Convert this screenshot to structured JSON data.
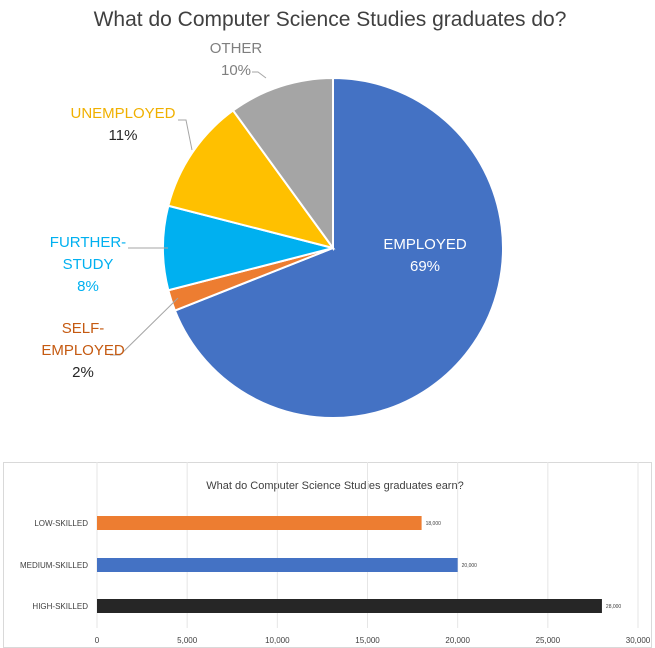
{
  "chart_data": [
    {
      "type": "pie",
      "title": "What do Computer Science Studies graduates do?",
      "slices": [
        {
          "label": "EMPLOYED",
          "label_lines": [
            "EMPLOYED"
          ],
          "value": 69,
          "value_text": "69%",
          "color": "#4472C4",
          "label_color": "#FFFFFF",
          "value_color": "#FFFFFF"
        },
        {
          "label": "SELF-EMPLOYED",
          "label_lines": [
            "SELF-",
            "EMPLOYED"
          ],
          "value": 2,
          "value_text": "2%",
          "color": "#ED7D31",
          "label_color": "#C55A11",
          "value_color": "#262626"
        },
        {
          "label": "FURTHER-STUDY",
          "label_lines": [
            "FURTHER-",
            "STUDY"
          ],
          "value": 8,
          "value_text": "8%",
          "color": "#00B0F0",
          "label_color": "#00B0F0",
          "value_color": "#00B0F0"
        },
        {
          "label": "UNEMPLOYED",
          "label_lines": [
            "UNEMPLOYED"
          ],
          "value": 11,
          "value_text": "11%",
          "color": "#FFC000",
          "label_color": "#F0B000",
          "value_color": "#262626"
        },
        {
          "label": "OTHER",
          "label_lines": [
            "OTHER"
          ],
          "value": 10,
          "value_text": "10%",
          "color": "#A5A5A5",
          "label_color": "#7F7F7F",
          "value_color": "#7F7F7F"
        }
      ]
    },
    {
      "type": "bar",
      "orientation": "horizontal",
      "title": "What do Computer Science Studies graduates earn?",
      "categories": [
        "LOW-SKILLED",
        "MEDIUM-SKILLED",
        "HIGH-SKILLED"
      ],
      "values": [
        18000,
        20000,
        28000
      ],
      "value_labels": [
        "18,000",
        "20,000",
        "28,000"
      ],
      "colors": [
        "#ED7D31",
        "#4472C4",
        "#262626"
      ],
      "xlim": [
        0,
        30000
      ],
      "ticks": [
        0,
        5000,
        10000,
        15000,
        20000,
        25000,
        30000
      ],
      "tick_labels": [
        "0",
        "5,000",
        "10,000",
        "15,000",
        "20,000",
        "25,000",
        "30,000"
      ],
      "grid": true
    }
  ]
}
